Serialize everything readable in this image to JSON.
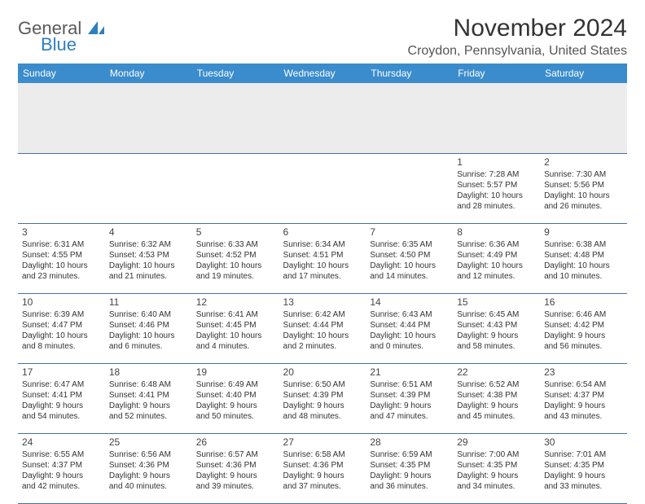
{
  "logo": {
    "word1": "General",
    "word2": "Blue"
  },
  "title": "November 2024",
  "location": "Croydon, Pennsylvania, United States",
  "colors": {
    "header_bg": "#3b8ccc",
    "header_text": "#ffffff",
    "spacer_bg": "#ececec",
    "border": "#4a6fa0",
    "text": "#333333",
    "logo_gray": "#5a5a5a",
    "logo_blue": "#2f7fbf"
  },
  "day_headers": [
    "Sunday",
    "Monday",
    "Tuesday",
    "Wednesday",
    "Thursday",
    "Friday",
    "Saturday"
  ],
  "weeks": [
    [
      null,
      null,
      null,
      null,
      null,
      {
        "n": "1",
        "sr": "7:28 AM",
        "ss": "5:57 PM",
        "dl1": "10 hours",
        "dl2": "and 28 minutes."
      },
      {
        "n": "2",
        "sr": "7:30 AM",
        "ss": "5:56 PM",
        "dl1": "10 hours",
        "dl2": "and 26 minutes."
      }
    ],
    [
      {
        "n": "3",
        "sr": "6:31 AM",
        "ss": "4:55 PM",
        "dl1": "10 hours",
        "dl2": "and 23 minutes."
      },
      {
        "n": "4",
        "sr": "6:32 AM",
        "ss": "4:53 PM",
        "dl1": "10 hours",
        "dl2": "and 21 minutes."
      },
      {
        "n": "5",
        "sr": "6:33 AM",
        "ss": "4:52 PM",
        "dl1": "10 hours",
        "dl2": "and 19 minutes."
      },
      {
        "n": "6",
        "sr": "6:34 AM",
        "ss": "4:51 PM",
        "dl1": "10 hours",
        "dl2": "and 17 minutes."
      },
      {
        "n": "7",
        "sr": "6:35 AM",
        "ss": "4:50 PM",
        "dl1": "10 hours",
        "dl2": "and 14 minutes."
      },
      {
        "n": "8",
        "sr": "6:36 AM",
        "ss": "4:49 PM",
        "dl1": "10 hours",
        "dl2": "and 12 minutes."
      },
      {
        "n": "9",
        "sr": "6:38 AM",
        "ss": "4:48 PM",
        "dl1": "10 hours",
        "dl2": "and 10 minutes."
      }
    ],
    [
      {
        "n": "10",
        "sr": "6:39 AM",
        "ss": "4:47 PM",
        "dl1": "10 hours",
        "dl2": "and 8 minutes."
      },
      {
        "n": "11",
        "sr": "6:40 AM",
        "ss": "4:46 PM",
        "dl1": "10 hours",
        "dl2": "and 6 minutes."
      },
      {
        "n": "12",
        "sr": "6:41 AM",
        "ss": "4:45 PM",
        "dl1": "10 hours",
        "dl2": "and 4 minutes."
      },
      {
        "n": "13",
        "sr": "6:42 AM",
        "ss": "4:44 PM",
        "dl1": "10 hours",
        "dl2": "and 2 minutes."
      },
      {
        "n": "14",
        "sr": "6:43 AM",
        "ss": "4:44 PM",
        "dl1": "10 hours",
        "dl2": "and 0 minutes."
      },
      {
        "n": "15",
        "sr": "6:45 AM",
        "ss": "4:43 PM",
        "dl1": "9 hours",
        "dl2": "and 58 minutes."
      },
      {
        "n": "16",
        "sr": "6:46 AM",
        "ss": "4:42 PM",
        "dl1": "9 hours",
        "dl2": "and 56 minutes."
      }
    ],
    [
      {
        "n": "17",
        "sr": "6:47 AM",
        "ss": "4:41 PM",
        "dl1": "9 hours",
        "dl2": "and 54 minutes."
      },
      {
        "n": "18",
        "sr": "6:48 AM",
        "ss": "4:41 PM",
        "dl1": "9 hours",
        "dl2": "and 52 minutes."
      },
      {
        "n": "19",
        "sr": "6:49 AM",
        "ss": "4:40 PM",
        "dl1": "9 hours",
        "dl2": "and 50 minutes."
      },
      {
        "n": "20",
        "sr": "6:50 AM",
        "ss": "4:39 PM",
        "dl1": "9 hours",
        "dl2": "and 48 minutes."
      },
      {
        "n": "21",
        "sr": "6:51 AM",
        "ss": "4:39 PM",
        "dl1": "9 hours",
        "dl2": "and 47 minutes."
      },
      {
        "n": "22",
        "sr": "6:52 AM",
        "ss": "4:38 PM",
        "dl1": "9 hours",
        "dl2": "and 45 minutes."
      },
      {
        "n": "23",
        "sr": "6:54 AM",
        "ss": "4:37 PM",
        "dl1": "9 hours",
        "dl2": "and 43 minutes."
      }
    ],
    [
      {
        "n": "24",
        "sr": "6:55 AM",
        "ss": "4:37 PM",
        "dl1": "9 hours",
        "dl2": "and 42 minutes."
      },
      {
        "n": "25",
        "sr": "6:56 AM",
        "ss": "4:36 PM",
        "dl1": "9 hours",
        "dl2": "and 40 minutes."
      },
      {
        "n": "26",
        "sr": "6:57 AM",
        "ss": "4:36 PM",
        "dl1": "9 hours",
        "dl2": "and 39 minutes."
      },
      {
        "n": "27",
        "sr": "6:58 AM",
        "ss": "4:36 PM",
        "dl1": "9 hours",
        "dl2": "and 37 minutes."
      },
      {
        "n": "28",
        "sr": "6:59 AM",
        "ss": "4:35 PM",
        "dl1": "9 hours",
        "dl2": "and 36 minutes."
      },
      {
        "n": "29",
        "sr": "7:00 AM",
        "ss": "4:35 PM",
        "dl1": "9 hours",
        "dl2": "and 34 minutes."
      },
      {
        "n": "30",
        "sr": "7:01 AM",
        "ss": "4:35 PM",
        "dl1": "9 hours",
        "dl2": "and 33 minutes."
      }
    ]
  ],
  "labels": {
    "sunrise": "Sunrise: ",
    "sunset": "Sunset: ",
    "daylight": "Daylight: "
  }
}
